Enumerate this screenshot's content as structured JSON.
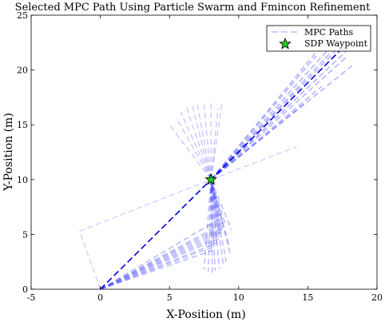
{
  "chart_data": {
    "type": "line",
    "title": "Selected MPC Path Using Particle Swarm and Fmincon Refinement",
    "xlabel": "X-Position (m)",
    "ylabel": "Y-Position (m)",
    "xlim": [
      -5,
      20
    ],
    "ylim": [
      0,
      25
    ],
    "x_ticks": [
      "-5",
      "0",
      "5",
      "10",
      "15",
      "20"
    ],
    "y_ticks": [
      "0",
      "5",
      "10",
      "15",
      "20",
      "25"
    ],
    "grid": false,
    "legend": {
      "placement": "top-right",
      "entries": [
        "MPC Paths",
        "SDP Waypoint"
      ]
    },
    "colors": {
      "mpc_path": "#4a4aff",
      "selected_path": "#0000dd",
      "waypoint_fill": "#22cc22",
      "waypoint_edge": "#000000"
    },
    "waypoint": {
      "x": 8,
      "y": 10
    },
    "selected_path": [
      [
        0,
        0
      ],
      [
        8,
        10
      ],
      [
        17.5,
        22
      ]
    ],
    "fans": [
      {
        "origin": [
          0,
          0
        ],
        "targets": [
          [
            8,
            3.5
          ],
          [
            8.2,
            3.9
          ],
          [
            8.4,
            4.2
          ],
          [
            8.5,
            4.6
          ],
          [
            8.6,
            4.9
          ],
          [
            8.7,
            5.2
          ],
          [
            8.8,
            5.5
          ],
          [
            8.9,
            5.8
          ],
          [
            9.0,
            6.1
          ],
          [
            8.6,
            6.4
          ]
        ],
        "waypoint_end": [
          8,
          10
        ]
      },
      {
        "origin": [
          8,
          10
        ],
        "targets": [
          [
            5.0,
            15
          ],
          [
            5.5,
            15.6
          ],
          [
            5.8,
            16.2
          ],
          [
            6.2,
            16.7
          ],
          [
            6.6,
            17.0
          ],
          [
            7.0,
            17.0
          ],
          [
            7.5,
            16.8
          ],
          [
            8.0,
            17.0
          ],
          [
            8.5,
            16.5
          ],
          [
            8.8,
            17.0
          ]
        ],
        "down_targets": [
          [
            7.5,
            1.8
          ],
          [
            7.8,
            1.6
          ],
          [
            8.1,
            1.5
          ],
          [
            8.3,
            1.7
          ],
          [
            8.6,
            1.9
          ],
          [
            8.9,
            2.2
          ],
          [
            9.1,
            2.5
          ],
          [
            9.4,
            3.2
          ],
          [
            9.3,
            4.0
          ],
          [
            9.5,
            5.4
          ]
        ]
      },
      {
        "origin": [
          8,
          10
        ],
        "targets": [
          [
            16.5,
            23.0
          ],
          [
            17.0,
            22.6
          ],
          [
            17.5,
            22.4
          ],
          [
            18.0,
            22.0
          ],
          [
            17.8,
            21.2
          ],
          [
            16.8,
            21.8
          ],
          [
            15.6,
            21.3
          ],
          [
            14.8,
            17.0
          ],
          [
            18.3,
            20.5
          ],
          [
            16.0,
            18.5
          ]
        ]
      }
    ],
    "outlier_paths": [
      [
        [
          0,
          0
        ],
        [
          -1.5,
          5.3
        ],
        [
          8,
          10
        ]
      ],
      [
        [
          8,
          10
        ],
        [
          14.2,
          13.0
        ]
      ]
    ]
  }
}
